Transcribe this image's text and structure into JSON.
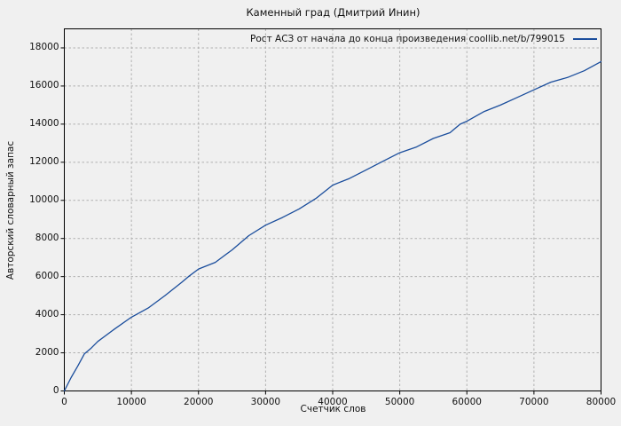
{
  "title": "Каменный град (Дмитрий Инин)",
  "legend": {
    "label": "Рост АСЗ от начала до конца произведения coollib.net/b/799015"
  },
  "axes": {
    "xlabel": "Счетчик слов",
    "ylabel": "Авторский словарный запас"
  },
  "colors": {
    "line": "#1a4d9c",
    "grid": "#b0b0b0",
    "border": "#000000",
    "background": "#f0f0f0",
    "text": "#111111"
  },
  "chart_data": {
    "type": "line",
    "title": "Каменный град (Дмитрий Инин)",
    "xlabel": "Счетчик слов",
    "ylabel": "Авторский словарный запас",
    "grid": true,
    "legend_position": "top-right-inside",
    "xlim": [
      0,
      80000
    ],
    "ylim": [
      0,
      19000
    ],
    "xticks": [
      0,
      10000,
      20000,
      30000,
      40000,
      50000,
      60000,
      70000,
      80000
    ],
    "yticks": [
      0,
      2000,
      4000,
      6000,
      8000,
      10000,
      12000,
      14000,
      16000,
      18000
    ],
    "series": [
      {
        "name": "Рост АСЗ от начала до конца произведения coollib.net/b/799015",
        "color": "#1a4d9c",
        "x": [
          0,
          1000,
          2000,
          3000,
          4000,
          5000,
          7500,
          10000,
          12500,
          15000,
          17500,
          18500,
          20000,
          22500,
          25000,
          27500,
          30000,
          32500,
          35000,
          37500,
          40000,
          42500,
          45000,
          47500,
          50000,
          52500,
          55000,
          57500,
          59000,
          60000,
          62500,
          65000,
          67500,
          70000,
          72500,
          75000,
          77500,
          80000
        ],
        "y": [
          0,
          700,
          1300,
          1950,
          2250,
          2600,
          3250,
          3870,
          4350,
          5000,
          5700,
          6000,
          6400,
          6750,
          7400,
          8150,
          8700,
          9100,
          9550,
          10100,
          10800,
          11150,
          11600,
          12050,
          12500,
          12800,
          13250,
          13550,
          14000,
          14150,
          14650,
          15000,
          15400,
          15800,
          16200,
          16450,
          16800,
          17280
        ]
      }
    ]
  }
}
